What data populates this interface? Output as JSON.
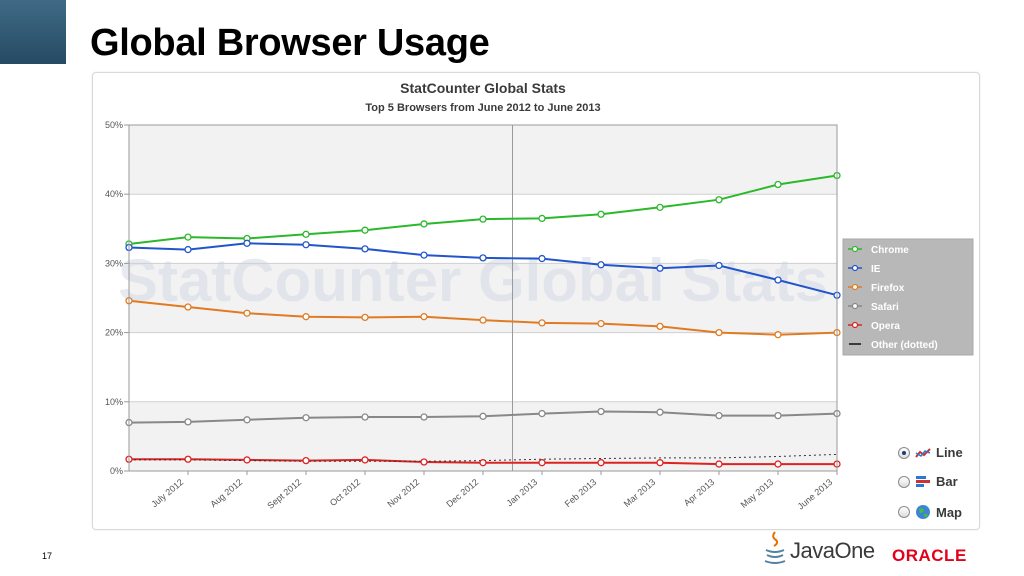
{
  "slide": {
    "title": "Global Browser Usage",
    "page_number": "17",
    "footer_logo_java": "JavaOne",
    "footer_logo_oracle": "ORACLE"
  },
  "chart_data": {
    "type": "line",
    "title": "StatCounter Global Stats",
    "subtitle": "Top 5 Browsers from June 2012 to June 2013",
    "watermark": "StatCounter Global Stats",
    "categories": [
      "June 2012",
      "July 2012",
      "Aug 2012",
      "Sept 2012",
      "Oct 2012",
      "Nov 2012",
      "Dec 2012",
      "Jan 2013",
      "Feb 2013",
      "Mar 2013",
      "Apr 2013",
      "May 2013",
      "June 2013"
    ],
    "x_tick_labels": [
      "July 2012",
      "Aug 2012",
      "Sept 2012",
      "Oct 2012",
      "Nov 2012",
      "Dec 2012",
      "Jan 2013",
      "Feb 2013",
      "Mar 2013",
      "Apr 2013",
      "May 2013",
      "June 2013"
    ],
    "ylim": [
      0,
      50
    ],
    "y_ticks": [
      0,
      10,
      20,
      30,
      40,
      50
    ],
    "y_tick_labels": [
      "0%",
      "10%",
      "20%",
      "30%",
      "40%",
      "50%"
    ],
    "grid": true,
    "legend_position": "right",
    "series": [
      {
        "name": "Chrome",
        "color": "#2bb82b",
        "dotted": false,
        "values": [
          32.8,
          33.8,
          33.6,
          34.2,
          34.8,
          35.7,
          36.4,
          36.5,
          37.1,
          38.1,
          39.2,
          41.4,
          42.7
        ]
      },
      {
        "name": "IE",
        "color": "#2255cc",
        "dotted": false,
        "values": [
          32.3,
          32.0,
          32.9,
          32.7,
          32.1,
          31.2,
          30.8,
          30.7,
          29.8,
          29.3,
          29.7,
          27.6,
          25.4
        ]
      },
      {
        "name": "Firefox",
        "color": "#e07b22",
        "dotted": false,
        "values": [
          24.6,
          23.7,
          22.8,
          22.3,
          22.2,
          22.3,
          21.8,
          21.4,
          21.3,
          20.9,
          20.0,
          19.7,
          20.0
        ]
      },
      {
        "name": "Safari",
        "color": "#888888",
        "dotted": false,
        "values": [
          7.0,
          7.1,
          7.4,
          7.7,
          7.8,
          7.8,
          7.9,
          8.3,
          8.6,
          8.5,
          8.0,
          8.0,
          8.3
        ]
      },
      {
        "name": "Opera",
        "color": "#dd2222",
        "dotted": false,
        "values": [
          1.7,
          1.7,
          1.6,
          1.5,
          1.6,
          1.3,
          1.2,
          1.2,
          1.2,
          1.2,
          1.0,
          1.0,
          1.0
        ]
      },
      {
        "name": "Other (dotted)",
        "color": "#333333",
        "dotted": true,
        "values": [
          1.6,
          1.6,
          1.5,
          1.4,
          1.4,
          1.4,
          1.5,
          1.7,
          1.8,
          1.9,
          1.9,
          2.1,
          2.4
        ]
      }
    ],
    "chart_type_options": [
      {
        "label": "Line",
        "selected": true
      },
      {
        "label": "Bar",
        "selected": false
      },
      {
        "label": "Map",
        "selected": false
      }
    ]
  }
}
